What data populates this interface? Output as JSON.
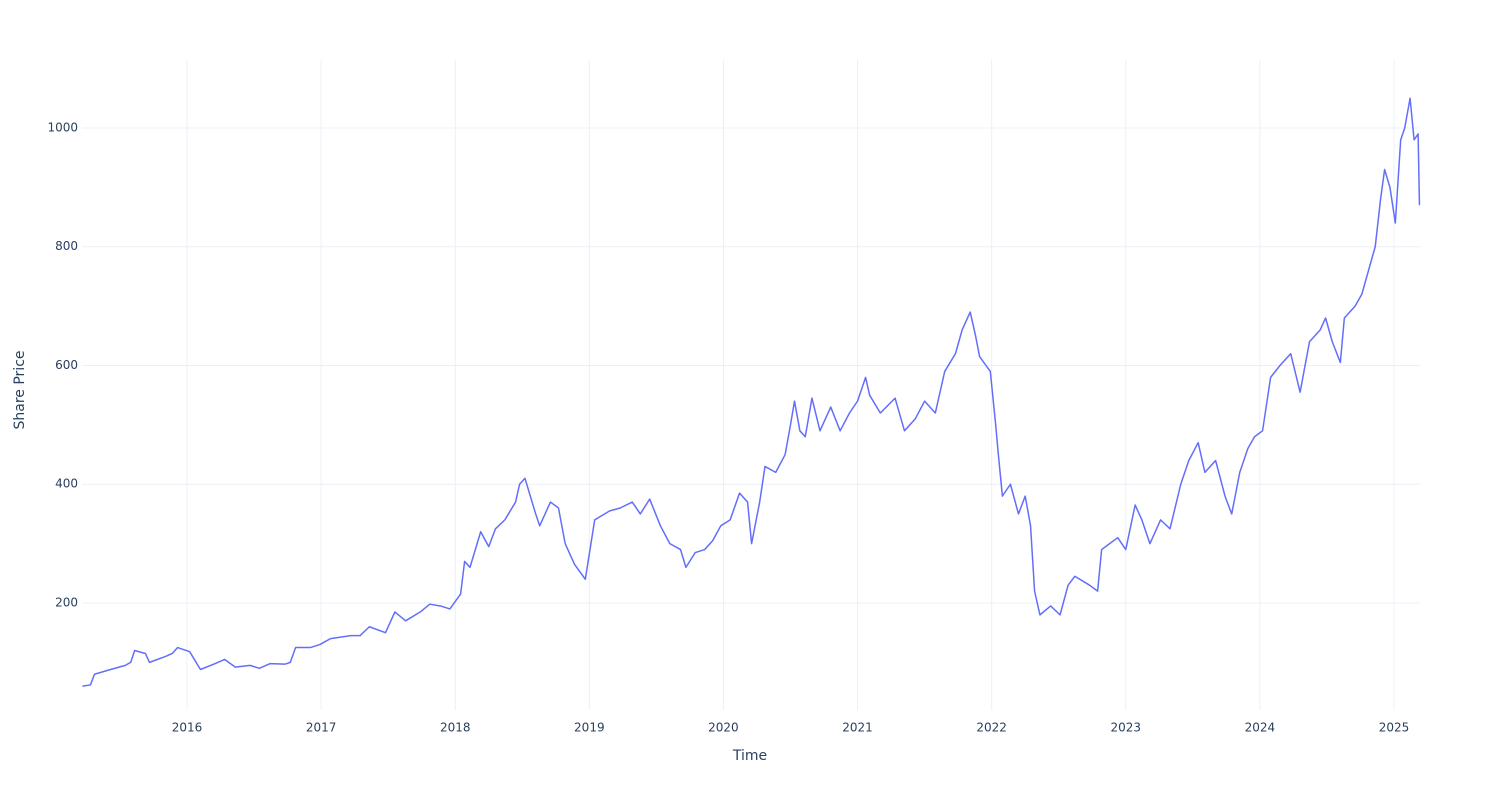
{
  "chart_data": {
    "type": "line",
    "x_label": "Time",
    "y_label": "Share Price",
    "color": "#636efa",
    "grid": true,
    "xlim": [
      2015.217,
      2025.194
    ],
    "ylim": [
      19.8,
      1114.5
    ],
    "xticks": [
      2016,
      2017,
      2018,
      2019,
      2020,
      2021,
      2022,
      2023,
      2024,
      2025
    ],
    "yticks": [
      200,
      400,
      600,
      800,
      1000
    ],
    "x": [
      2015.22,
      2015.28,
      2015.31,
      2015.43,
      2015.54,
      2015.58,
      2015.61,
      2015.69,
      2015.72,
      2015.84,
      2015.89,
      2015.93,
      2016.02,
      2016.1,
      2016.21,
      2016.28,
      2016.36,
      2016.47,
      2016.54,
      2016.62,
      2016.73,
      2016.77,
      2016.81,
      2016.92,
      2016.99,
      2017.07,
      2017.22,
      2017.29,
      2017.36,
      2017.48,
      2017.55,
      2017.63,
      2017.74,
      2017.81,
      2017.89,
      2017.96,
      2018.04,
      2018.07,
      2018.11,
      2018.19,
      2018.25,
      2018.3,
      2018.37,
      2018.45,
      2018.48,
      2018.52,
      2018.6,
      2018.63,
      2018.71,
      2018.77,
      2018.82,
      2018.89,
      2018.97,
      2019.04,
      2019.15,
      2019.23,
      2019.32,
      2019.38,
      2019.45,
      2019.53,
      2019.6,
      2019.68,
      2019.72,
      2019.79,
      2019.86,
      2019.92,
      2019.98,
      2020.05,
      2020.12,
      2020.18,
      2020.21,
      2020.27,
      2020.31,
      2020.39,
      2020.46,
      2020.5,
      2020.53,
      2020.57,
      2020.61,
      2020.66,
      2020.72,
      2020.8,
      2020.87,
      2020.94,
      2021.0,
      2021.06,
      2021.09,
      2021.17,
      2021.28,
      2021.35,
      2021.43,
      2021.5,
      2021.58,
      2021.65,
      2021.73,
      2021.78,
      2021.84,
      2021.88,
      2021.91,
      2021.99,
      2022.03,
      2022.05,
      2022.08,
      2022.14,
      2022.2,
      2022.25,
      2022.29,
      2022.32,
      2022.36,
      2022.44,
      2022.51,
      2022.57,
      2022.62,
      2022.73,
      2022.79,
      2022.82,
      2022.88,
      2022.94,
      2023.0,
      2023.07,
      2023.12,
      2023.18,
      2023.26,
      2023.33,
      2023.41,
      2023.47,
      2023.54,
      2023.59,
      2023.67,
      2023.74,
      2023.79,
      2023.85,
      2023.91,
      2023.96,
      2024.02,
      2024.08,
      2024.15,
      2024.23,
      2024.3,
      2024.37,
      2024.45,
      2024.49,
      2024.54,
      2024.6,
      2024.63,
      2024.71,
      2024.76,
      2024.81,
      2024.86,
      2024.9,
      2024.93,
      2024.97,
      2025.01,
      2025.05,
      2025.08,
      2025.12,
      2025.15,
      2025.18,
      2025.19
    ],
    "values": [
      60,
      62,
      80,
      88,
      95,
      100,
      120,
      115,
      100,
      110,
      115,
      125,
      118,
      88,
      98,
      105,
      92,
      95,
      90,
      98,
      97,
      100,
      125,
      125,
      130,
      140,
      145,
      145,
      160,
      150,
      185,
      170,
      185,
      198,
      195,
      190,
      215,
      270,
      260,
      320,
      295,
      325,
      340,
      370,
      400,
      410,
      350,
      330,
      370,
      360,
      300,
      265,
      240,
      340,
      355,
      360,
      370,
      350,
      375,
      330,
      300,
      290,
      260,
      285,
      290,
      305,
      330,
      340,
      385,
      370,
      300,
      370,
      430,
      420,
      450,
      500,
      540,
      490,
      480,
      545,
      490,
      530,
      490,
      520,
      540,
      580,
      550,
      520,
      545,
      490,
      510,
      540,
      520,
      590,
      620,
      660,
      690,
      650,
      615,
      590,
      500,
      450,
      380,
      400,
      350,
      380,
      330,
      220,
      180,
      195,
      180,
      230,
      245,
      230,
      220,
      290,
      300,
      310,
      290,
      365,
      340,
      300,
      340,
      325,
      400,
      440,
      470,
      420,
      440,
      380,
      350,
      420,
      460,
      480,
      490,
      580,
      600,
      620,
      555,
      640,
      660,
      680,
      640,
      605,
      680,
      700,
      720,
      760,
      800,
      880,
      930,
      900,
      840,
      980,
      1000,
      1050,
      980,
      990,
      870
    ]
  }
}
